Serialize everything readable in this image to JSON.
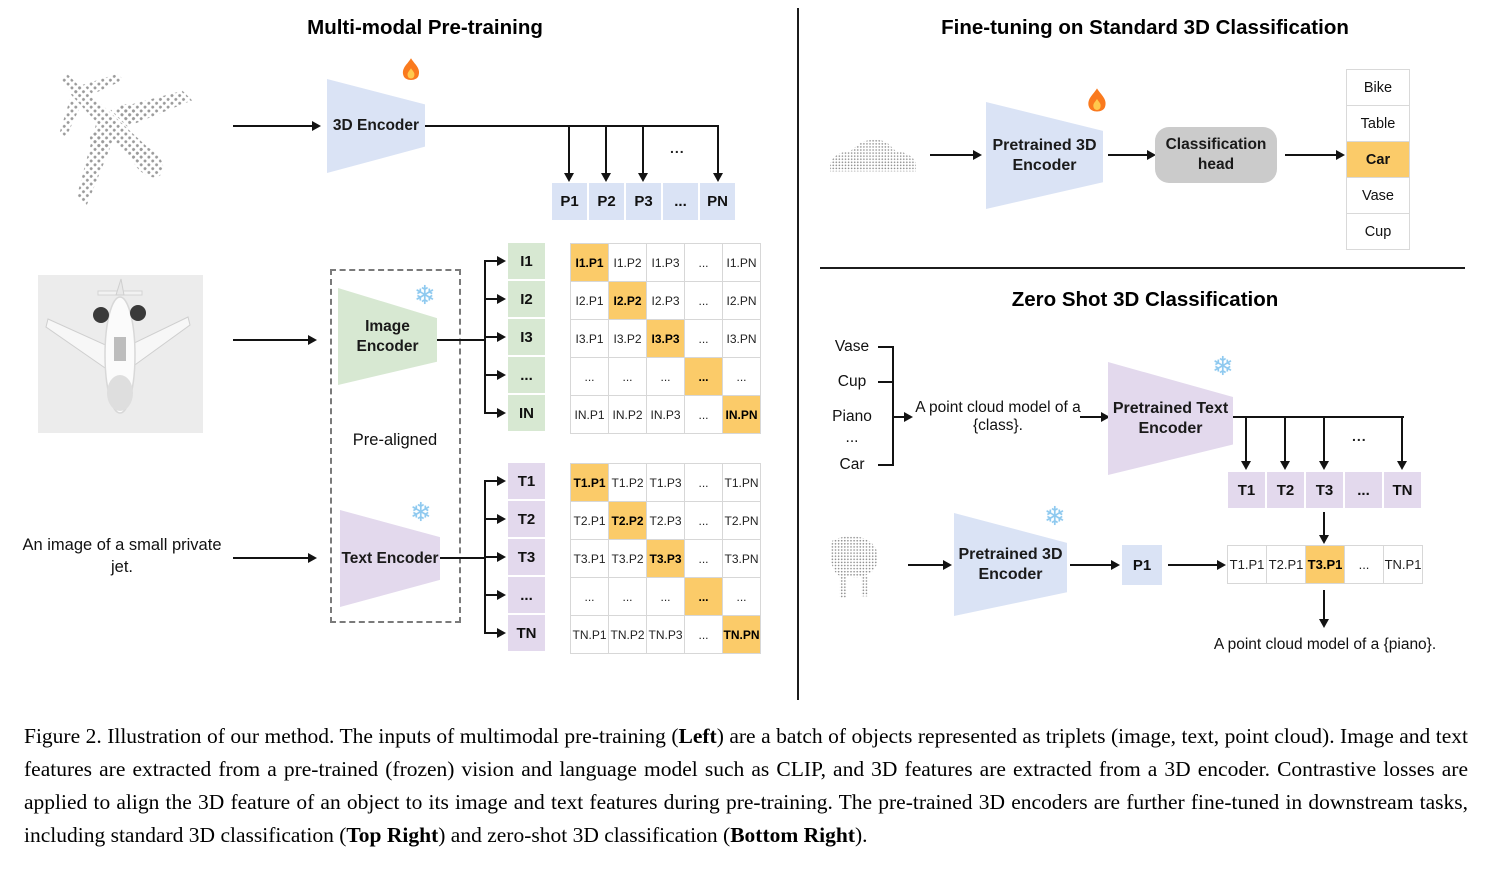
{
  "colors": {
    "blue": "#dae3f5",
    "green": "#d7e8d2",
    "purple": "#e3d9ed",
    "highlight": "#fbcb69",
    "head_gray": "#cbcbcb"
  },
  "icons": {
    "snowflake": "❄"
  },
  "pretraining": {
    "title": "Multi-modal Pre-training",
    "encoder3d": "3D Encoder",
    "image_encoder": "Image Encoder",
    "text_encoder": "Text Encoder",
    "pre_aligned": "Pre-aligned",
    "text_input": "An image of a small private jet.",
    "fan_dots": "...",
    "p_row": [
      "P1",
      "P2",
      "P3",
      "...",
      "PN"
    ],
    "i_col": [
      "I1",
      "I2",
      "I3",
      "...",
      "IN"
    ],
    "t_col": [
      "T1",
      "T2",
      "T3",
      "...",
      "TN"
    ],
    "ip_matrix": [
      [
        "I1.P1",
        "I1.P2",
        "I1.P3",
        "...",
        "I1.PN"
      ],
      [
        "I2.P1",
        "I2.P2",
        "I2.P3",
        "...",
        "I2.PN"
      ],
      [
        "I3.P1",
        "I3.P2",
        "I3.P3",
        "...",
        "I3.PN"
      ],
      [
        "...",
        "...",
        "...",
        "...",
        "..."
      ],
      [
        "IN.P1",
        "IN.P2",
        "IN.P3",
        "...",
        "IN.PN"
      ]
    ],
    "tp_matrix": [
      [
        "T1.P1",
        "T1.P2",
        "T1.P3",
        "...",
        "T1.PN"
      ],
      [
        "T2.P1",
        "T2.P2",
        "T2.P3",
        "...",
        "T2.PN"
      ],
      [
        "T3.P1",
        "T3.P2",
        "T3.P3",
        "...",
        "T3.PN"
      ],
      [
        "...",
        "...",
        "...",
        "...",
        "..."
      ],
      [
        "TN.P1",
        "TN.P2",
        "TN.P3",
        "...",
        "TN.PN"
      ]
    ]
  },
  "finetune": {
    "title": "Fine-tuning on Standard 3D Classification",
    "encoder": "Pretrained 3D Encoder",
    "head": "Classification head",
    "classes": [
      {
        "label": "Bike"
      },
      {
        "label": "Table"
      },
      {
        "label": "Car",
        "highlight": true
      },
      {
        "label": "Vase"
      },
      {
        "label": "Cup"
      }
    ]
  },
  "zeroshot": {
    "title": "Zero Shot 3D Classification",
    "class_list": [
      "Vase",
      "Cup",
      "Piano",
      "...",
      "Car"
    ],
    "prompt": "A point cloud model of a {class}.",
    "text_encoder": "Pretrained Text Encoder",
    "encoder": "Pretrained 3D Encoder",
    "p1": "P1",
    "fan_dots": "...",
    "t_row": [
      "T1",
      "T2",
      "T3",
      "...",
      "TN"
    ],
    "result_row": [
      {
        "label": "T1.P1"
      },
      {
        "label": "T2.P1"
      },
      {
        "label": "T3.P1",
        "highlight": true
      },
      {
        "label": "..."
      },
      {
        "label": "TN.P1"
      }
    ],
    "result_text": "A point cloud model of a {piano}."
  },
  "caption": {
    "segments": [
      {
        "text": "Figure 2. Illustration of our method. The inputs of multimodal pre-training (",
        "bold": false
      },
      {
        "text": "Left",
        "bold": true
      },
      {
        "text": ") are a batch of objects represented as triplets (image, text, point cloud). Image and text features are extracted from a pre-trained (frozen) vision and language model such as CLIP, and 3D features are extracted from a 3D encoder. Contrastive losses are applied to align the 3D feature of an object to its image and text features during pre-training. The pre-trained 3D encoders are further fine-tuned in downstream tasks, including standard 3D classification (",
        "bold": false
      },
      {
        "text": "Top Right",
        "bold": true
      },
      {
        "text": ") and zero-shot 3D classification (",
        "bold": false
      },
      {
        "text": "Bottom Right",
        "bold": true
      },
      {
        "text": ").",
        "bold": false
      }
    ]
  }
}
